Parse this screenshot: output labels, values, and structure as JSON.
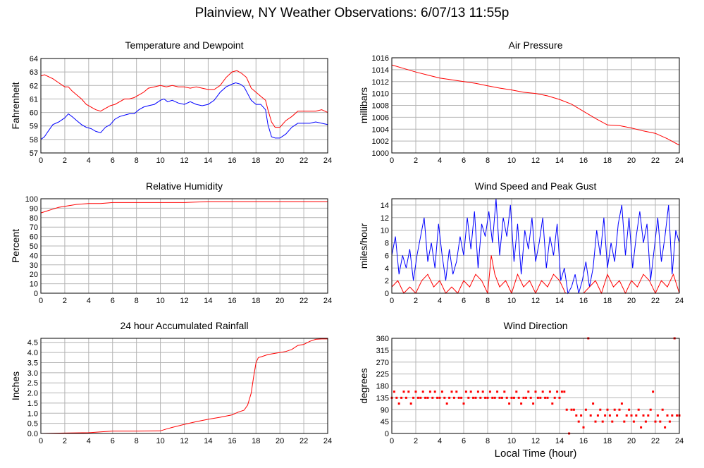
{
  "page_title": "Plainview, NY Weather Observations: 6/07/13 11:55p",
  "colors": {
    "temperature": "#ff0000",
    "dewpoint": "#0000ff",
    "grid": "#b4b4b4",
    "axis": "#000000"
  },
  "chart_data": [
    {
      "id": "temperature-dewpoint",
      "type": "line",
      "title": "Temperature and Dewpoint",
      "xlabel": "",
      "ylabel": "Fahrenheit",
      "xlim": [
        0,
        24
      ],
      "ylim": [
        57,
        64
      ],
      "xticks": [
        "0",
        "2",
        "4",
        "6",
        "8",
        "10",
        "12",
        "14",
        "16",
        "18",
        "20",
        "22",
        "24"
      ],
      "yticks": [
        "57",
        "58",
        "59",
        "60",
        "61",
        "62",
        "63",
        "64"
      ],
      "grid": true,
      "series": [
        {
          "color": "#ff0000",
          "x": [
            0,
            0.3,
            1,
            1.5,
            2,
            2.3,
            2.6,
            3,
            3.4,
            3.8,
            4.2,
            4.6,
            5,
            5.4,
            5.8,
            6.2,
            6.6,
            7,
            7.4,
            7.8,
            8.2,
            8.6,
            9,
            9.5,
            10,
            10.5,
            11,
            11.5,
            12,
            12.5,
            13,
            13.5,
            14,
            14.5,
            15,
            15.5,
            16,
            16.4,
            16.8,
            17.2,
            17.6,
            18,
            18.4,
            18.8,
            19,
            19.3,
            19.6,
            20,
            20.5,
            21,
            21.5,
            22,
            22.5,
            23,
            23.5,
            24
          ],
          "y": [
            62.7,
            62.8,
            62.5,
            62.2,
            61.9,
            61.9,
            61.6,
            61.3,
            61.0,
            60.6,
            60.4,
            60.2,
            60.1,
            60.3,
            60.5,
            60.6,
            60.8,
            61.0,
            61.0,
            61.1,
            61.3,
            61.5,
            61.8,
            61.9,
            62.0,
            61.9,
            62.0,
            61.9,
            61.9,
            61.8,
            61.9,
            61.8,
            61.7,
            61.7,
            62.0,
            62.6,
            63.0,
            63.1,
            62.9,
            62.6,
            61.8,
            61.5,
            61.2,
            60.9,
            60.2,
            59.3,
            58.9,
            58.9,
            59.4,
            59.7,
            60.1,
            60.1,
            60.1,
            60.1,
            60.2,
            60.0
          ]
        },
        {
          "color": "#0000ff",
          "x": [
            0,
            0.3,
            0.6,
            1,
            1.5,
            2,
            2.3,
            2.6,
            3,
            3.4,
            3.8,
            4.2,
            4.6,
            5,
            5.4,
            5.8,
            6.2,
            6.6,
            7,
            7.4,
            7.8,
            8.2,
            8.6,
            9,
            9.5,
            10,
            10.3,
            10.6,
            11,
            11.5,
            12,
            12.5,
            13,
            13.5,
            14,
            14.5,
            15,
            15.5,
            16,
            16.3,
            16.7,
            17,
            17.3,
            17.6,
            18,
            18.4,
            18.8,
            19,
            19.3,
            19.6,
            20,
            20.5,
            21,
            21.5,
            22,
            22.5,
            23,
            23.5,
            24
          ],
          "y": [
            58.0,
            58.2,
            58.6,
            59.1,
            59.3,
            59.6,
            59.9,
            59.7,
            59.4,
            59.1,
            58.9,
            58.8,
            58.6,
            58.5,
            58.9,
            59.1,
            59.5,
            59.7,
            59.8,
            59.9,
            59.9,
            60.2,
            60.4,
            60.5,
            60.6,
            60.9,
            61.0,
            60.8,
            60.9,
            60.7,
            60.6,
            60.8,
            60.6,
            60.5,
            60.6,
            60.9,
            61.5,
            61.9,
            62.1,
            62.2,
            62.1,
            61.9,
            61.4,
            60.9,
            60.6,
            60.6,
            60.2,
            59.1,
            58.2,
            58.1,
            58.1,
            58.4,
            58.9,
            59.2,
            59.2,
            59.2,
            59.3,
            59.2,
            59.1
          ]
        }
      ]
    },
    {
      "id": "air-pressure",
      "type": "line",
      "title": "Air Pressure",
      "xlabel": "",
      "ylabel": "millibars",
      "xlim": [
        0,
        24
      ],
      "ylim": [
        1000,
        1016
      ],
      "xticks": [
        "0",
        "2",
        "4",
        "6",
        "8",
        "10",
        "12",
        "14",
        "16",
        "18",
        "20",
        "22",
        "24"
      ],
      "yticks": [
        "1000",
        "1002",
        "1004",
        "1006",
        "1008",
        "1010",
        "1012",
        "1014",
        "1016"
      ],
      "grid": true,
      "series": [
        {
          "color": "#ff0000",
          "x": [
            0,
            1,
            2,
            3,
            4,
            5,
            6,
            7,
            8,
            9,
            10,
            11,
            12,
            13,
            14,
            15,
            16,
            17,
            18,
            19,
            20,
            21,
            22,
            23,
            24
          ],
          "y": [
            1014.8,
            1014.2,
            1013.6,
            1013.1,
            1012.6,
            1012.3,
            1012.0,
            1011.7,
            1011.3,
            1010.9,
            1010.6,
            1010.2,
            1010.0,
            1009.6,
            1009.0,
            1008.2,
            1007.0,
            1005.8,
            1004.7,
            1004.6,
            1004.2,
            1003.7,
            1003.3,
            1002.4,
            1001.3
          ]
        }
      ]
    },
    {
      "id": "relative-humidity",
      "type": "line",
      "title": "Relative Humidity",
      "xlabel": "",
      "ylabel": "Percent",
      "xlim": [
        0,
        24
      ],
      "ylim": [
        0,
        100
      ],
      "xticks": [
        "0",
        "2",
        "4",
        "6",
        "8",
        "10",
        "12",
        "14",
        "16",
        "18",
        "20",
        "22",
        "24"
      ],
      "yticks": [
        "0",
        "10",
        "20",
        "30",
        "40",
        "50",
        "60",
        "70",
        "80",
        "90",
        "100"
      ],
      "grid": true,
      "series": [
        {
          "color": "#ff0000",
          "x": [
            0,
            0.5,
            1,
            1.5,
            2,
            3,
            4,
            5,
            6,
            8,
            10,
            11,
            12,
            14,
            16,
            18,
            20,
            22,
            24
          ],
          "y": [
            85,
            87,
            89,
            91,
            92,
            94,
            95,
            95,
            96,
            96,
            96,
            96,
            96,
            97,
            97,
            97,
            97,
            97,
            97
          ]
        }
      ]
    },
    {
      "id": "wind-speed-gust",
      "type": "line",
      "title": "Wind Speed and Peak Gust",
      "xlabel": "",
      "ylabel": "miles/hour",
      "xlim": [
        0,
        24
      ],
      "ylim": [
        0,
        15
      ],
      "xticks": [
        "0",
        "2",
        "4",
        "6",
        "8",
        "10",
        "12",
        "14",
        "16",
        "18",
        "20",
        "22",
        "24"
      ],
      "yticks": [
        "0",
        "2",
        "4",
        "6",
        "8",
        "10",
        "12",
        "14"
      ],
      "grid": true,
      "series": [
        {
          "color": "#0000ff",
          "x": [
            0,
            0.3,
            0.6,
            0.9,
            1.2,
            1.5,
            1.8,
            2.1,
            2.4,
            2.7,
            3,
            3.3,
            3.6,
            3.9,
            4.2,
            4.5,
            4.8,
            5.1,
            5.4,
            5.7,
            6,
            6.3,
            6.6,
            6.9,
            7.2,
            7.5,
            7.8,
            8.1,
            8.4,
            8.7,
            9,
            9.3,
            9.6,
            9.9,
            10.2,
            10.5,
            10.8,
            11.1,
            11.4,
            11.7,
            12,
            12.3,
            12.6,
            12.9,
            13.2,
            13.5,
            13.8,
            14.1,
            14.4,
            14.7,
            15,
            15.3,
            15.6,
            15.9,
            16.2,
            16.5,
            16.8,
            17.1,
            17.4,
            17.7,
            18,
            18.3,
            18.6,
            18.9,
            19.2,
            19.5,
            19.8,
            20.1,
            20.4,
            20.7,
            21,
            21.3,
            21.6,
            21.9,
            22.2,
            22.5,
            22.8,
            23.1,
            23.4,
            23.7,
            24
          ],
          "y": [
            6,
            9,
            3,
            6,
            4,
            7,
            2,
            6,
            9,
            12,
            5,
            8,
            4,
            11,
            6,
            2,
            7,
            3,
            5,
            9,
            6,
            12,
            7,
            13,
            4,
            11,
            9,
            13,
            8,
            15,
            6,
            12,
            9,
            14,
            5,
            11,
            3,
            10,
            7,
            12,
            5,
            8,
            12,
            4,
            9,
            6,
            11,
            2,
            4,
            0,
            1,
            3,
            0,
            2,
            5,
            1,
            4,
            10,
            6,
            12,
            4,
            8,
            5,
            11,
            14,
            6,
            12,
            4,
            9,
            13,
            8,
            11,
            2,
            7,
            12,
            5,
            9,
            14,
            3,
            10,
            8
          ]
        },
        {
          "color": "#ff0000",
          "x": [
            0,
            0.5,
            1,
            1.5,
            2,
            2.5,
            3,
            3.5,
            4,
            4.5,
            5,
            5.5,
            6,
            6.5,
            7,
            7.5,
            8,
            8.3,
            8.6,
            9,
            9.5,
            10,
            10.5,
            11,
            11.5,
            12,
            12.5,
            13,
            13.5,
            14,
            14.5,
            15,
            15.5,
            16,
            16.5,
            17,
            17.5,
            18,
            18.5,
            19,
            19.5,
            20,
            20.5,
            21,
            21.5,
            22,
            22.5,
            23,
            23.5,
            24
          ],
          "y": [
            1,
            2,
            0,
            1,
            0,
            2,
            3,
            1,
            2,
            0,
            1,
            0,
            2,
            1,
            3,
            2,
            0,
            6,
            3,
            1,
            2,
            0,
            3,
            1,
            2,
            0,
            2,
            1,
            3,
            2,
            0,
            0,
            0,
            0,
            1,
            2,
            0,
            3,
            1,
            2,
            0,
            2,
            1,
            3,
            2,
            0,
            2,
            1,
            3,
            0
          ]
        }
      ]
    },
    {
      "id": "accumulated-rainfall",
      "type": "line",
      "title": "24 hour Accumulated Rainfall",
      "xlabel": "",
      "ylabel": "Inches",
      "xlim": [
        0,
        24
      ],
      "ylim": [
        0,
        4.7
      ],
      "xticks": [
        "0",
        "2",
        "4",
        "6",
        "8",
        "10",
        "12",
        "14",
        "16",
        "18",
        "20",
        "22",
        "24"
      ],
      "yticks": [
        "0.0",
        "0.5",
        "1.0",
        "1.5",
        "2.0",
        "2.5",
        "3.0",
        "3.5",
        "4.0",
        "4.5"
      ],
      "grid": true,
      "series": [
        {
          "color": "#ff0000",
          "x": [
            0,
            2,
            4,
            5,
            6,
            8,
            10,
            10.5,
            11,
            12,
            13,
            14,
            15,
            16,
            16.5,
            17,
            17.3,
            17.6,
            17.8,
            18,
            18.2,
            18.5,
            19,
            20,
            20.5,
            21,
            21.5,
            22,
            22.5,
            23,
            23.5,
            24
          ],
          "y": [
            0.0,
            0.02,
            0.04,
            0.08,
            0.12,
            0.12,
            0.13,
            0.22,
            0.3,
            0.45,
            0.58,
            0.7,
            0.8,
            0.92,
            1.05,
            1.15,
            1.4,
            2.0,
            2.8,
            3.5,
            3.75,
            3.8,
            3.9,
            4.0,
            4.05,
            4.15,
            4.35,
            4.4,
            4.55,
            4.65,
            4.67,
            4.67
          ]
        }
      ]
    },
    {
      "id": "wind-direction",
      "type": "scatter",
      "title": "Wind Direction",
      "xlabel": "Local Time (hour)",
      "ylabel": "degrees",
      "xlim": [
        0,
        24
      ],
      "ylim": [
        0,
        360
      ],
      "xticks": [
        "0",
        "2",
        "4",
        "6",
        "8",
        "10",
        "12",
        "14",
        "16",
        "18",
        "20",
        "22",
        "24"
      ],
      "yticks": [
        "0",
        "45",
        "90",
        "135",
        "180",
        "225",
        "270",
        "315",
        "360"
      ],
      "grid": true,
      "series": [
        {
          "color": "#ff0000",
          "x": [
            0,
            0.2,
            0.4,
            0.6,
            0.8,
            1,
            1.2,
            1.4,
            1.6,
            1.8,
            2,
            2.2,
            2.4,
            2.6,
            2.8,
            3,
            3.2,
            3.4,
            3.6,
            3.8,
            4,
            4.2,
            4.4,
            4.6,
            4.8,
            5,
            5.2,
            5.4,
            5.6,
            5.8,
            6,
            6.2,
            6.4,
            6.6,
            6.8,
            7,
            7.2,
            7.4,
            7.6,
            7.8,
            8,
            8.2,
            8.4,
            8.6,
            8.8,
            9,
            9.2,
            9.4,
            9.6,
            9.8,
            10,
            10.2,
            10.4,
            10.6,
            10.8,
            11,
            11.2,
            11.4,
            11.6,
            11.8,
            12,
            12.2,
            12.4,
            12.6,
            12.8,
            13,
            13.2,
            13.4,
            13.6,
            13.8,
            14,
            14.2,
            14.4,
            14.6,
            14.8,
            15,
            15.2,
            15.4,
            15.6,
            15.8,
            16,
            16.2,
            16.4,
            16.6,
            16.8,
            17,
            17.2,
            17.4,
            17.6,
            17.8,
            18,
            18.2,
            18.4,
            18.6,
            18.8,
            19,
            19.2,
            19.4,
            19.6,
            19.8,
            20,
            20.2,
            20.4,
            20.6,
            20.8,
            21,
            21.2,
            21.4,
            21.6,
            21.8,
            22,
            22.2,
            22.4,
            22.6,
            22.8,
            23,
            23.2,
            23.4,
            23.6,
            23.8,
            24
          ],
          "y": [
            135,
            158,
            135,
            113,
            135,
            158,
            135,
            158,
            113,
            135,
            158,
            135,
            135,
            158,
            135,
            135,
            158,
            135,
            158,
            135,
            135,
            158,
            135,
            113,
            135,
            158,
            135,
            158,
            135,
            135,
            113,
            158,
            135,
            158,
            135,
            135,
            158,
            135,
            158,
            135,
            135,
            158,
            135,
            135,
            158,
            135,
            135,
            158,
            135,
            113,
            135,
            135,
            158,
            135,
            113,
            135,
            135,
            158,
            135,
            113,
            158,
            135,
            135,
            158,
            135,
            135,
            158,
            113,
            135,
            158,
            135,
            158,
            158,
            90,
            0,
            90,
            90,
            68,
            45,
            68,
            23,
            90,
            360,
            68,
            113,
            45,
            68,
            90,
            45,
            68,
            90,
            68,
            45,
            90,
            68,
            90,
            113,
            45,
            68,
            90,
            68,
            45,
            68,
            90,
            23,
            68,
            45,
            68,
            90,
            158,
            45,
            68,
            45,
            90,
            23,
            68,
            45,
            68,
            360,
            68,
            68
          ]
        }
      ]
    }
  ]
}
